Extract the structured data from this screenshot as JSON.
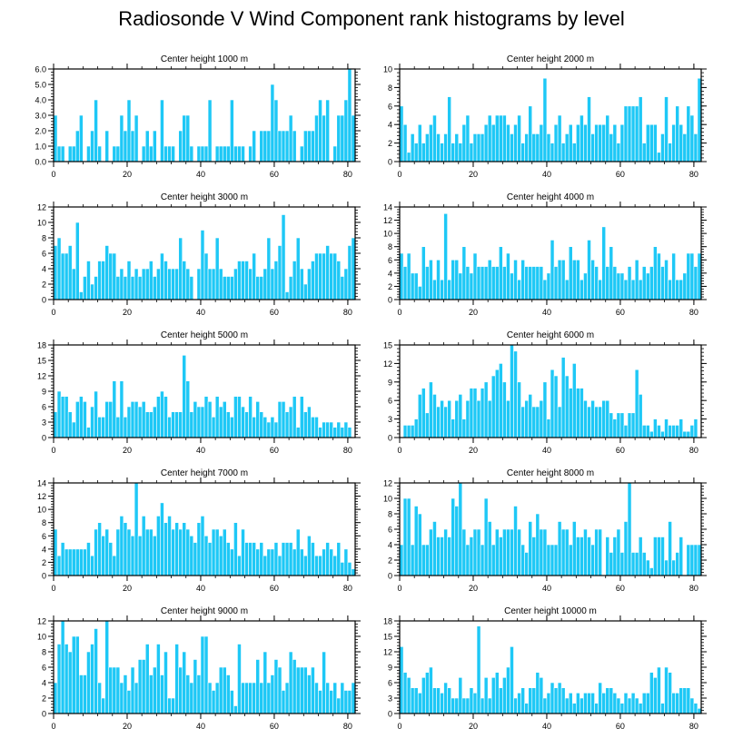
{
  "figure_title": "Radiosonde V Wind Component rank histograms by level",
  "colors": {
    "bar_fill": "#1ec8f6",
    "bar_edge": "#ffffff",
    "axis": "#000000"
  },
  "chart_data": [
    {
      "type": "bar",
      "title": "Center height 1000 m",
      "xlabel": "",
      "ylabel": "",
      "xlim": [
        0,
        82
      ],
      "ylim": [
        0,
        6
      ],
      "xticks": [
        0,
        20,
        40,
        60,
        80
      ],
      "yticks": [
        0,
        1,
        2,
        3,
        4,
        5,
        6
      ],
      "ytick_labels": [
        "0.0",
        "1.0",
        "2.0",
        "3.0",
        "4.0",
        "5.0",
        "6.0"
      ],
      "values": [
        3,
        1,
        1,
        0,
        1,
        1,
        2,
        3,
        0,
        1,
        2,
        4,
        1,
        0,
        2,
        0,
        1,
        1,
        3,
        2,
        4,
        2,
        3,
        0,
        1,
        2,
        1,
        2,
        0,
        4,
        1,
        1,
        1,
        0,
        2,
        3,
        3,
        1,
        0,
        1,
        1,
        1,
        4,
        0,
        1,
        1,
        1,
        1,
        4,
        1,
        1,
        1,
        0,
        1,
        2,
        0,
        2,
        2,
        2,
        5,
        4,
        2,
        2,
        2,
        3,
        2,
        0,
        1,
        2,
        2,
        2,
        3,
        4,
        3,
        4,
        0,
        1,
        3,
        3,
        4,
        6,
        3
      ]
    },
    {
      "type": "bar",
      "title": "Center height 2000 m",
      "xlabel": "",
      "ylabel": "",
      "xlim": [
        0,
        82
      ],
      "ylim": [
        0,
        10
      ],
      "xticks": [
        0,
        20,
        40,
        60,
        80
      ],
      "yticks": [
        0,
        2,
        4,
        6,
        8,
        10
      ],
      "ytick_labels": [
        "0",
        "2",
        "4",
        "6",
        "8",
        "10"
      ],
      "values": [
        6,
        4,
        1,
        3,
        2,
        4,
        2,
        3,
        4,
        5,
        3,
        2,
        3,
        7,
        2,
        3,
        2,
        4,
        5,
        2,
        3,
        3,
        3,
        4,
        5,
        4,
        5,
        5,
        5,
        4,
        3,
        4,
        5,
        2,
        3,
        6,
        3,
        3,
        4,
        9,
        3,
        2,
        4,
        5,
        2,
        3,
        4,
        2,
        4,
        5,
        4,
        7,
        3,
        4,
        4,
        4,
        5,
        3,
        4,
        2,
        4,
        6,
        6,
        6,
        6,
        7,
        2,
        4,
        4,
        4,
        1,
        3,
        7,
        2,
        4,
        6,
        4,
        3,
        6,
        5,
        3,
        9
      ]
    },
    {
      "type": "bar",
      "title": "Center height 3000 m",
      "xlabel": "",
      "ylabel": "",
      "xlim": [
        0,
        82
      ],
      "ylim": [
        0,
        12
      ],
      "xticks": [
        0,
        20,
        40,
        60,
        80
      ],
      "yticks": [
        0,
        2,
        4,
        6,
        8,
        10,
        12
      ],
      "ytick_labels": [
        "0",
        "2",
        "4",
        "6",
        "8",
        "10",
        "12"
      ],
      "values": [
        7,
        8,
        6,
        6,
        7,
        4,
        10,
        1,
        3,
        5,
        2,
        3,
        5,
        5,
        7,
        6,
        6,
        3,
        4,
        3,
        5,
        3,
        4,
        3,
        4,
        4,
        5,
        3,
        4,
        6,
        5,
        4,
        4,
        4,
        8,
        5,
        4,
        3,
        0,
        4,
        9,
        6,
        4,
        4,
        8,
        4,
        3,
        3,
        3,
        4,
        5,
        5,
        5,
        4,
        6,
        3,
        3,
        4,
        8,
        4,
        5,
        7,
        11,
        1,
        3,
        5,
        8,
        4,
        2,
        4,
        5,
        6,
        6,
        6,
        7,
        6,
        6,
        5,
        3,
        4,
        7,
        8
      ]
    },
    {
      "type": "bar",
      "title": "Center height 4000 m",
      "xlabel": "",
      "ylabel": "",
      "xlim": [
        0,
        82
      ],
      "ylim": [
        0,
        14
      ],
      "xticks": [
        0,
        20,
        40,
        60,
        80
      ],
      "yticks": [
        0,
        2,
        4,
        6,
        8,
        10,
        12,
        14
      ],
      "ytick_labels": [
        "0",
        "2",
        "4",
        "6",
        "8",
        "10",
        "12",
        "14"
      ],
      "values": [
        7,
        5,
        7,
        4,
        4,
        2,
        8,
        5,
        6,
        3,
        6,
        3,
        13,
        3,
        6,
        6,
        4,
        8,
        5,
        4,
        7,
        5,
        5,
        5,
        6,
        5,
        5,
        8,
        5,
        7,
        4,
        6,
        3,
        6,
        5,
        5,
        5,
        5,
        5,
        3,
        4,
        9,
        5,
        6,
        6,
        3,
        8,
        6,
        6,
        3,
        4,
        9,
        6,
        5,
        3,
        11,
        5,
        8,
        5,
        4,
        4,
        3,
        5,
        3,
        6,
        3,
        5,
        4,
        5,
        8,
        7,
        5,
        6,
        3,
        7,
        3,
        3,
        4,
        7,
        7,
        5,
        7
      ]
    },
    {
      "type": "bar",
      "title": "Center height 5000 m",
      "xlabel": "",
      "ylabel": "",
      "xlim": [
        0,
        82
      ],
      "ylim": [
        0,
        18
      ],
      "xticks": [
        0,
        20,
        40,
        60,
        80
      ],
      "yticks": [
        0,
        3,
        6,
        9,
        12,
        15,
        18
      ],
      "ytick_labels": [
        "0",
        "3",
        "6",
        "9",
        "12",
        "15",
        "18"
      ],
      "values": [
        5,
        9,
        8,
        8,
        5,
        3,
        7,
        8,
        7,
        2,
        6,
        9,
        4,
        4,
        7,
        7,
        11,
        4,
        11,
        4,
        6,
        7,
        7,
        6,
        7,
        5,
        5,
        6,
        8,
        9,
        8,
        4,
        5,
        5,
        5,
        16,
        11,
        5,
        7,
        6,
        6,
        8,
        7,
        4,
        8,
        6,
        7,
        5,
        4,
        8,
        8,
        6,
        5,
        8,
        4,
        7,
        5,
        4,
        3,
        4,
        3,
        7,
        7,
        5,
        6,
        8,
        2,
        8,
        5,
        6,
        4,
        4,
        2,
        3,
        3,
        3,
        2,
        3,
        2,
        3,
        2,
        0
      ]
    },
    {
      "type": "bar",
      "title": "Center height 6000 m",
      "xlabel": "",
      "ylabel": "",
      "xlim": [
        0,
        82
      ],
      "ylim": [
        0,
        15
      ],
      "xticks": [
        0,
        20,
        40,
        60,
        80
      ],
      "yticks": [
        0,
        3,
        6,
        9,
        12,
        15
      ],
      "ytick_labels": [
        "0",
        "3",
        "6",
        "9",
        "12",
        "15"
      ],
      "values": [
        0,
        2,
        2,
        2,
        3,
        7,
        8,
        4,
        9,
        7,
        5,
        6,
        5,
        6,
        3,
        6,
        7,
        3,
        6,
        8,
        8,
        6,
        8,
        9,
        6,
        10,
        11,
        12,
        9,
        6,
        15,
        14,
        9,
        5,
        6,
        7,
        5,
        5,
        6,
        9,
        3,
        11,
        10,
        5,
        13,
        10,
        8,
        12,
        8,
        8,
        6,
        5,
        6,
        5,
        5,
        6,
        6,
        4,
        3,
        4,
        4,
        2,
        4,
        4,
        11,
        7,
        2,
        2,
        1,
        3,
        2,
        1,
        3,
        2,
        2,
        2,
        3,
        1,
        1,
        2,
        3,
        0
      ]
    },
    {
      "type": "bar",
      "title": "Center height 7000 m",
      "xlabel": "",
      "ylabel": "",
      "xlim": [
        0,
        82
      ],
      "ylim": [
        0,
        14
      ],
      "xticks": [
        0,
        20,
        40,
        60,
        80
      ],
      "yticks": [
        0,
        2,
        4,
        6,
        8,
        10,
        12,
        14
      ],
      "ytick_labels": [
        "0",
        "2",
        "4",
        "6",
        "8",
        "10",
        "12",
        "14"
      ],
      "values": [
        7,
        3,
        5,
        4,
        4,
        4,
        4,
        4,
        4,
        5,
        3,
        7,
        8,
        6,
        7,
        5,
        3,
        7,
        9,
        8,
        7,
        6,
        14,
        6,
        9,
        7,
        7,
        6,
        9,
        11,
        8,
        9,
        7,
        8,
        7,
        8,
        7,
        6,
        5,
        8,
        9,
        6,
        5,
        7,
        7,
        6,
        7,
        5,
        4,
        8,
        3,
        7,
        5,
        5,
        5,
        4,
        5,
        3,
        4,
        4,
        5,
        3,
        5,
        5,
        5,
        4,
        7,
        4,
        3,
        6,
        5,
        3,
        3,
        4,
        5,
        4,
        3,
        5,
        2,
        4,
        2,
        1
      ]
    },
    {
      "type": "bar",
      "title": "Center height 8000 m",
      "xlabel": "",
      "ylabel": "",
      "xlim": [
        0,
        82
      ],
      "ylim": [
        0,
        12
      ],
      "xticks": [
        0,
        20,
        40,
        60,
        80
      ],
      "yticks": [
        0,
        2,
        4,
        6,
        8,
        10,
        12
      ],
      "ytick_labels": [
        "0",
        "2",
        "4",
        "6",
        "8",
        "10",
        "12"
      ],
      "values": [
        4,
        10,
        10,
        4,
        9,
        8,
        4,
        4,
        6,
        7,
        5,
        5,
        6,
        5,
        10,
        9,
        12,
        6,
        4,
        5,
        6,
        6,
        4,
        10,
        7,
        4,
        6,
        5,
        6,
        6,
        6,
        9,
        6,
        4,
        3,
        7,
        5,
        8,
        6,
        6,
        4,
        4,
        4,
        7,
        6,
        6,
        4,
        7,
        5,
        5,
        6,
        5,
        4,
        6,
        6,
        0,
        5,
        3,
        5,
        6,
        3,
        7,
        12,
        3,
        3,
        5,
        3,
        2,
        1,
        5,
        5,
        5,
        2,
        7,
        2,
        3,
        5,
        0,
        4,
        4,
        4,
        4
      ]
    },
    {
      "type": "bar",
      "title": "Center height 9000 m",
      "xlabel": "",
      "ylabel": "",
      "xlim": [
        0,
        82
      ],
      "ylim": [
        0,
        12
      ],
      "xticks": [
        0,
        20,
        40,
        60,
        80
      ],
      "yticks": [
        0,
        2,
        4,
        6,
        8,
        10,
        12
      ],
      "ytick_labels": [
        "0",
        "2",
        "4",
        "6",
        "8",
        "10",
        "12"
      ],
      "values": [
        4,
        9,
        12,
        9,
        8,
        10,
        10,
        5,
        5,
        8,
        9,
        11,
        4,
        2,
        12,
        6,
        6,
        6,
        4,
        5,
        3,
        6,
        4,
        7,
        7,
        9,
        5,
        6,
        9,
        5,
        8,
        2,
        2,
        9,
        6,
        8,
        5,
        4,
        7,
        5,
        10,
        10,
        4,
        3,
        4,
        6,
        6,
        5,
        3,
        1,
        9,
        4,
        4,
        4,
        4,
        7,
        4,
        8,
        4,
        5,
        7,
        6,
        3,
        4,
        8,
        7,
        6,
        6,
        6,
        5,
        6,
        4,
        3,
        8,
        4,
        3,
        4,
        2,
        4,
        3,
        3,
        4
      ]
    },
    {
      "type": "bar",
      "title": "Center height 10000 m",
      "xlabel": "",
      "ylabel": "",
      "xlim": [
        0,
        82
      ],
      "ylim": [
        0,
        18
      ],
      "xticks": [
        0,
        20,
        40,
        60,
        80
      ],
      "yticks": [
        0,
        3,
        6,
        9,
        12,
        15,
        18
      ],
      "ytick_labels": [
        "0",
        "3",
        "6",
        "9",
        "12",
        "15",
        "18"
      ],
      "values": [
        13,
        8,
        7,
        5,
        5,
        4,
        7,
        8,
        9,
        5,
        5,
        4,
        6,
        5,
        3,
        3,
        7,
        3,
        3,
        5,
        4,
        17,
        3,
        7,
        3,
        7,
        8,
        5,
        7,
        9,
        13,
        3,
        4,
        5,
        2,
        5,
        5,
        8,
        7,
        3,
        4,
        6,
        5,
        6,
        5,
        3,
        4,
        2,
        4,
        3,
        4,
        4,
        4,
        2,
        6,
        4,
        5,
        5,
        4,
        3,
        2,
        4,
        3,
        4,
        3,
        2,
        4,
        4,
        8,
        7,
        9,
        2,
        9,
        8,
        4,
        4,
        5,
        5,
        5,
        3,
        2,
        1
      ]
    }
  ]
}
